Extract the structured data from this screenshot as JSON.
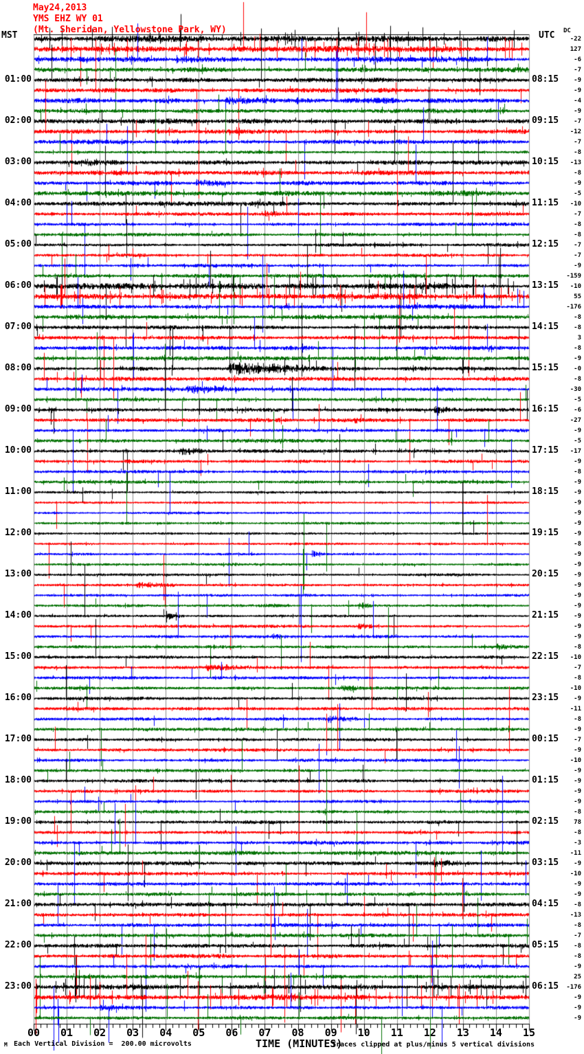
{
  "header": {
    "date": "May24,2013",
    "station": "YMS EHZ WY 01",
    "location": "(Mt. Sheridan, Yellowstone Park, WY)"
  },
  "left_timezone_label": "MST",
  "right_timezone_label": "UTC",
  "dc_column_label": "DC",
  "footer": {
    "logo_mark": "M",
    "scale_note": "Each Vertical Division =  200.00 microvolts",
    "xaxis_title": "TIME (MINUTES)",
    "clip_note": "Traces clipped at plus/minus 5 vertical divisions"
  },
  "colors": {
    "trace_cycle": [
      "#000000",
      "#ff0000",
      "#0000ff",
      "#007000"
    ],
    "grid": "#8c8c8c",
    "header_text": "#ff0000",
    "background": "#ffffff"
  },
  "axis": {
    "minute_labels": [
      "00",
      "01",
      "02",
      "03",
      "04",
      "05",
      "06",
      "07",
      "08",
      "09",
      "10",
      "11",
      "12",
      "13",
      "14",
      "15"
    ],
    "major_tick_every_minutes": 1,
    "minor_ticks_per_major": 4
  },
  "chart_data": {
    "type": "line",
    "subtype": "helicorder-seismogram",
    "minutes_per_row": 15,
    "x_range_minutes": [
      0,
      15
    ],
    "left_timezone": "MST",
    "right_timezone": "UTC",
    "clip_divisions": 5,
    "microvolts_per_division": 200.0,
    "rows": [
      {
        "m": "",
        "u": "",
        "dc": "-22",
        "a": 3.2,
        "s": 7,
        "t": 1
      },
      {
        "m": "",
        "u": "",
        "dc": "127",
        "a": 3.2,
        "s": 9,
        "t": 1
      },
      {
        "m": "",
        "u": "",
        "dc": "-6",
        "a": 2.8,
        "s": 5,
        "b": [
          [
            4.3,
            6.0,
            5
          ],
          [
            9.8,
            12.0,
            4
          ]
        ]
      },
      {
        "m": "",
        "u": "",
        "dc": "-7",
        "a": 2.8,
        "s": 5
      },
      {
        "m": "01:00",
        "u": "08:15",
        "dc": "-9",
        "a": 2.4,
        "s": 5
      },
      {
        "m": "",
        "u": "",
        "dc": "-9",
        "a": 2.4,
        "s": 5
      },
      {
        "m": "",
        "u": "",
        "dc": "-4",
        "a": 2.8,
        "s": 4,
        "b": [
          [
            5.8,
            9.0,
            4.5
          ]
        ]
      },
      {
        "m": "",
        "u": "",
        "dc": "-9",
        "a": 2.4,
        "s": 5
      },
      {
        "m": "02:00",
        "u": "09:15",
        "dc": "-7",
        "a": 2.6,
        "s": 5
      },
      {
        "m": "",
        "u": "",
        "dc": "-12",
        "a": 2.4,
        "s": 6
      },
      {
        "m": "",
        "u": "",
        "dc": "-7",
        "a": 2.2,
        "s": 4
      },
      {
        "m": "",
        "u": "",
        "dc": "-8",
        "a": 1.3,
        "s": 3
      },
      {
        "m": "03:00",
        "u": "10:15",
        "dc": "-13",
        "a": 2.2,
        "s": 5,
        "b": [
          [
            1.4,
            2.6,
            5
          ]
        ]
      },
      {
        "m": "",
        "u": "",
        "dc": "-8",
        "a": 2.2,
        "s": 5
      },
      {
        "m": "",
        "u": "",
        "dc": "-9",
        "a": 2.2,
        "s": 4,
        "b": [
          [
            4.9,
            6.2,
            5
          ]
        ]
      },
      {
        "m": "",
        "u": "",
        "dc": "-5",
        "a": 2.6,
        "s": 4
      },
      {
        "m": "04:00",
        "u": "11:15",
        "dc": "-10",
        "a": 2.0,
        "s": 4
      },
      {
        "m": "",
        "u": "",
        "dc": "-7",
        "a": 1.8,
        "s": 4,
        "b": [
          [
            6.9,
            8.2,
            4
          ]
        ]
      },
      {
        "m": "",
        "u": "",
        "dc": "-8",
        "a": 1.6,
        "s": 5
      },
      {
        "m": "",
        "u": "",
        "dc": "-8",
        "a": 1.6,
        "s": 4
      },
      {
        "m": "05:00",
        "u": "12:15",
        "dc": "-7",
        "a": 1.6,
        "s": 6
      },
      {
        "m": "",
        "u": "",
        "dc": "-7",
        "a": 1.6,
        "s": 6
      },
      {
        "m": "",
        "u": "",
        "dc": "-9",
        "a": 1.6,
        "s": 6
      },
      {
        "m": "",
        "u": "",
        "dc": "-159",
        "a": 1.8,
        "s": 8
      },
      {
        "m": "06:00",
        "u": "13:15",
        "dc": "-10",
        "a": 3.0,
        "s": 12,
        "t": 1
      },
      {
        "m": "",
        "u": "",
        "dc": "55",
        "a": 3.0,
        "s": 13,
        "t": 1
      },
      {
        "m": "",
        "u": "",
        "dc": "-176",
        "a": 2.2,
        "s": 10
      },
      {
        "m": "",
        "u": "",
        "dc": "-8",
        "a": 2.2,
        "s": 9
      },
      {
        "m": "07:00",
        "u": "14:15",
        "dc": "-8",
        "a": 2.0,
        "s": 7
      },
      {
        "m": "",
        "u": "",
        "dc": "3",
        "a": 2.0,
        "s": 7
      },
      {
        "m": "",
        "u": "",
        "dc": "-8",
        "a": 2.0,
        "s": 8
      },
      {
        "m": "",
        "u": "",
        "dc": "-9",
        "a": 2.0,
        "s": 6
      },
      {
        "m": "08:00",
        "u": "15:15",
        "dc": "-0",
        "a": 2.0,
        "s": 6,
        "b": [
          [
            5.9,
            8.8,
            9
          ]
        ]
      },
      {
        "m": "",
        "u": "",
        "dc": "-8",
        "a": 2.0,
        "s": 7
      },
      {
        "m": "",
        "u": "",
        "dc": "-30",
        "a": 1.8,
        "s": 5,
        "b": [
          [
            4.6,
            6.4,
            6
          ]
        ]
      },
      {
        "m": "",
        "u": "",
        "dc": "-5",
        "a": 1.8,
        "s": 5
      },
      {
        "m": "09:00",
        "u": "16:15",
        "dc": "-6",
        "a": 1.8,
        "s": 6,
        "b": [
          [
            12.1,
            12.9,
            5
          ]
        ]
      },
      {
        "m": "",
        "u": "",
        "dc": "-27",
        "a": 1.8,
        "s": 7,
        "b": [
          [
            9.7,
            10.4,
            4
          ]
        ]
      },
      {
        "m": "",
        "u": "",
        "dc": "-9",
        "a": 1.6,
        "s": 6
      },
      {
        "m": "",
        "u": "",
        "dc": "-5",
        "a": 1.8,
        "s": 6
      },
      {
        "m": "10:00",
        "u": "17:15",
        "dc": "-17",
        "a": 1.8,
        "s": 6,
        "b": [
          [
            4.4,
            5.4,
            5
          ]
        ]
      },
      {
        "m": "",
        "u": "",
        "dc": "-9",
        "a": 1.6,
        "s": 5
      },
      {
        "m": "",
        "u": "",
        "dc": "-8",
        "a": 1.5,
        "s": 4
      },
      {
        "m": "",
        "u": "",
        "dc": "-9",
        "a": 1.5,
        "s": 4
      },
      {
        "m": "11:00",
        "u": "18:15",
        "dc": "-9",
        "a": 1.2,
        "s": 2
      },
      {
        "m": "",
        "u": "",
        "dc": "-9",
        "a": 1.1,
        "s": 2
      },
      {
        "m": "",
        "u": "",
        "dc": "-9",
        "a": 1.1,
        "s": 2
      },
      {
        "m": "",
        "u": "",
        "dc": "-9",
        "a": 1.1,
        "s": 2
      },
      {
        "m": "12:00",
        "u": "19:15",
        "dc": "-9",
        "a": 1.1,
        "s": 2
      },
      {
        "m": "",
        "u": "",
        "dc": "-8",
        "a": 1.1,
        "s": 2
      },
      {
        "m": "",
        "u": "",
        "dc": "-9",
        "a": 1.1,
        "s": 3,
        "b": [
          [
            8.4,
            8.9,
            4
          ]
        ]
      },
      {
        "m": "",
        "u": "",
        "dc": "-9",
        "a": 1.1,
        "s": 2
      },
      {
        "m": "13:00",
        "u": "20:15",
        "dc": "-9",
        "a": 1.2,
        "s": 3
      },
      {
        "m": "",
        "u": "",
        "dc": "-9",
        "a": 1.3,
        "s": 3,
        "b": [
          [
            3.1,
            4.5,
            4
          ]
        ]
      },
      {
        "m": "",
        "u": "",
        "dc": "-9",
        "a": 1.2,
        "s": 2
      },
      {
        "m": "",
        "u": "",
        "dc": "-9",
        "a": 1.3,
        "s": 3,
        "b": [
          [
            9.8,
            10.3,
            4
          ]
        ]
      },
      {
        "m": "14:00",
        "u": "21:15",
        "dc": "-9",
        "a": 1.4,
        "s": 3,
        "b": [
          [
            4.0,
            4.6,
            4
          ]
        ]
      },
      {
        "m": "",
        "u": "",
        "dc": "-9",
        "a": 1.4,
        "s": 3,
        "b": [
          [
            9.8,
            10.4,
            5
          ]
        ]
      },
      {
        "m": "",
        "u": "",
        "dc": "-9",
        "a": 1.4,
        "s": 3,
        "b": [
          [
            7.2,
            7.8,
            4
          ]
        ]
      },
      {
        "m": "",
        "u": "",
        "dc": "-8",
        "a": 1.5,
        "s": 4,
        "b": [
          [
            14.0,
            14.6,
            5
          ]
        ]
      },
      {
        "m": "15:00",
        "u": "22:15",
        "dc": "-10",
        "a": 1.6,
        "s": 4
      },
      {
        "m": "",
        "u": "",
        "dc": "-7",
        "a": 1.6,
        "s": 4,
        "b": [
          [
            5.2,
            7.0,
            4.5
          ]
        ]
      },
      {
        "m": "",
        "u": "",
        "dc": "-8",
        "a": 1.5,
        "s": 5
      },
      {
        "m": "",
        "u": "",
        "dc": "-10",
        "a": 1.6,
        "s": 5,
        "b": [
          [
            9.3,
            10.2,
            4
          ]
        ]
      },
      {
        "m": "16:00",
        "u": "23:15",
        "dc": "-9",
        "a": 1.6,
        "s": 4
      },
      {
        "m": "",
        "u": "",
        "dc": "-11",
        "a": 1.6,
        "s": 5
      },
      {
        "m": "",
        "u": "",
        "dc": "-8",
        "a": 1.6,
        "s": 5,
        "b": [
          [
            8.9,
            10.0,
            4.5
          ]
        ]
      },
      {
        "m": "",
        "u": "",
        "dc": "-9",
        "a": 1.6,
        "s": 4
      },
      {
        "m": "17:00",
        "u": "00:15",
        "dc": "-7",
        "a": 1.5,
        "s": 3
      },
      {
        "m": "",
        "u": "",
        "dc": "-9",
        "a": 1.5,
        "s": 4
      },
      {
        "m": "",
        "u": "",
        "dc": "-10",
        "a": 1.5,
        "s": 3
      },
      {
        "m": "",
        "u": "",
        "dc": "-9",
        "a": 1.6,
        "s": 4
      },
      {
        "m": "18:00",
        "u": "01:15",
        "dc": "-9",
        "a": 1.6,
        "s": 4
      },
      {
        "m": "",
        "u": "",
        "dc": "-9",
        "a": 1.5,
        "s": 4
      },
      {
        "m": "",
        "u": "",
        "dc": "-9",
        "a": 1.5,
        "s": 5
      },
      {
        "m": "",
        "u": "",
        "dc": "-8",
        "a": 1.6,
        "s": 4
      },
      {
        "m": "19:00",
        "u": "02:15",
        "dc": "78",
        "a": 1.8,
        "s": 5
      },
      {
        "m": "",
        "u": "",
        "dc": "-8",
        "a": 1.7,
        "s": 5
      },
      {
        "m": "",
        "u": "",
        "dc": "-3",
        "a": 1.7,
        "s": 6
      },
      {
        "m": "",
        "u": "",
        "dc": "-11",
        "a": 1.8,
        "s": 6
      },
      {
        "m": "20:00",
        "u": "03:15",
        "dc": "-9",
        "a": 2.0,
        "s": 6,
        "b": [
          [
            12.1,
            13.3,
            5
          ]
        ]
      },
      {
        "m": "",
        "u": "",
        "dc": "-10",
        "a": 1.8,
        "s": 7
      },
      {
        "m": "",
        "u": "",
        "dc": "-9",
        "a": 1.8,
        "s": 8
      },
      {
        "m": "",
        "u": "",
        "dc": "-9",
        "a": 1.8,
        "s": 7
      },
      {
        "m": "21:00",
        "u": "04:15",
        "dc": "-8",
        "a": 2.0,
        "s": 8
      },
      {
        "m": "",
        "u": "",
        "dc": "-13",
        "a": 2.0,
        "s": 9
      },
      {
        "m": "",
        "u": "",
        "dc": "-8",
        "a": 1.8,
        "s": 8
      },
      {
        "m": "",
        "u": "",
        "dc": "-7",
        "a": 1.8,
        "s": 8
      },
      {
        "m": "22:00",
        "u": "05:15",
        "dc": "-8",
        "a": 2.0,
        "s": 10
      },
      {
        "m": "",
        "u": "",
        "dc": "-8",
        "a": 2.0,
        "s": 9
      },
      {
        "m": "",
        "u": "",
        "dc": "-9",
        "a": 1.8,
        "s": 8
      },
      {
        "m": "",
        "u": "",
        "dc": "25",
        "a": 1.8,
        "s": 8
      },
      {
        "m": "23:00",
        "u": "06:15",
        "dc": "-176",
        "a": 2.4,
        "s": 12,
        "t": 1
      },
      {
        "m": "",
        "u": "",
        "dc": "-9",
        "a": 2.6,
        "s": 13,
        "t": 1
      },
      {
        "m": "",
        "u": "",
        "dc": "-9",
        "a": 1.8,
        "s": 8,
        "b": [
          [
            2.0,
            3.2,
            4
          ]
        ]
      },
      {
        "m": "",
        "u": "",
        "dc": "-9",
        "a": 1.8,
        "s": 7
      }
    ]
  }
}
